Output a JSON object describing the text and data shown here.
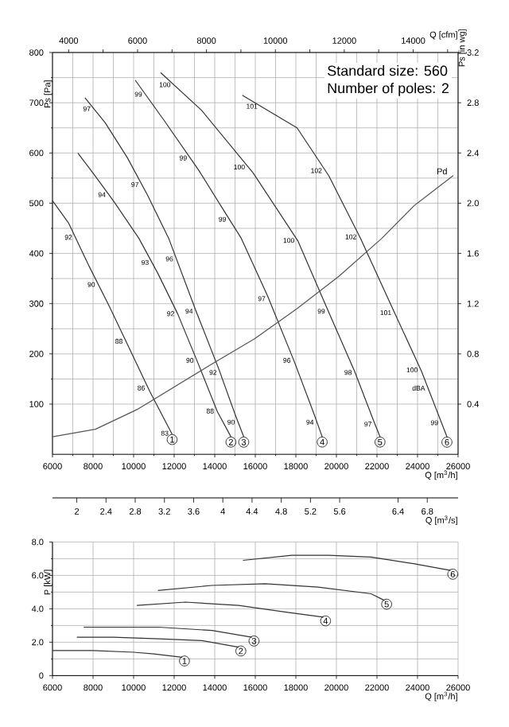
{
  "chart_data": [
    {
      "type": "line",
      "xlabel": "Q [m$^{3}$/h]",
      "ylabel": "Ps [Pa]",
      "y2label": "Ps [in wg]",
      "x2label": "Q [cfm]",
      "xlim": [
        6000,
        26000
      ],
      "xticks": [
        6000,
        8000,
        10000,
        12000,
        14000,
        16000,
        18000,
        20000,
        22000,
        24000,
        26000
      ],
      "ylim": [
        0,
        800
      ],
      "yticks": [
        100,
        200,
        300,
        400,
        500,
        600,
        700,
        800
      ],
      "y2lim": [
        0,
        3.2
      ],
      "y2ticks": [
        0.4,
        0.8,
        1.2,
        1.6,
        {
          "value": 2.0,
          "label": "2.0"
        },
        2.4,
        2.8,
        3.2
      ],
      "x2lim": [
        3531,
        15303
      ],
      "x2ticks": [
        4000,
        {
          "value": 5000,
          "label": null
        },
        6000,
        {
          "value": 7000,
          "label": null
        },
        8000,
        {
          "value": 9000,
          "label": null
        },
        10000,
        {
          "value": 11000,
          "label": null
        },
        12000,
        {
          "value": 13000,
          "label": null
        },
        14000,
        {
          "value": 15000,
          "label": null
        }
      ],
      "grid": true,
      "series": [
        {
          "name": "1",
          "color": "#333333",
          "x": [
            6000,
            6800,
            7800,
            8800,
            9800,
            10800,
            11900
          ],
          "values": [
            505,
            460,
            375,
            295,
            210,
            125,
            40
          ]
        },
        {
          "name": "2",
          "color": "#333333",
          "x": [
            7250,
            8000,
            9000,
            10260,
            11200,
            12170,
            13140,
            14130,
            14800
          ],
          "values": [
            600,
            560,
            505,
            430,
            360,
            280,
            185,
            85,
            35
          ]
        },
        {
          "name": "3",
          "color": "#333333",
          "x": [
            7600,
            8600,
            9700,
            10700,
            11730,
            13080,
            14200,
            15000,
            15430
          ],
          "values": [
            710,
            660,
            590,
            515,
            430,
            285,
            170,
            80,
            35
          ]
        },
        {
          "name": "4",
          "color": "#333333",
          "x": [
            10080,
            11500,
            13220,
            14300,
            15310,
            16610,
            17920,
            18900,
            19300
          ],
          "values": [
            745,
            665,
            565,
            495,
            430,
            315,
            185,
            80,
            35
          ]
        },
        {
          "name": "5",
          "color": "#333333",
          "x": [
            11330,
            13350,
            15900,
            18100,
            19600,
            20900,
            21900,
            22150
          ],
          "values": [
            760,
            685,
            560,
            425,
            285,
            165,
            60,
            35
          ]
        },
        {
          "name": "6",
          "color": "#333333",
          "x": [
            15360,
            18060,
            19620,
            21190,
            22890,
            24200,
            25450
          ],
          "values": [
            715,
            650,
            555,
            430,
            280,
            165,
            35
          ]
        },
        {
          "name": "Pd",
          "color": "#555555",
          "x": [
            6000,
            8120,
            10210,
            12040,
            13870,
            15960,
            18060,
            20140,
            22240,
            23830,
            25760
          ],
          "values": [
            35,
            50,
            90,
            135,
            180,
            230,
            290,
            355,
            430,
            495,
            555
          ]
        }
      ],
      "annotations": [
        "Standard size: 560",
        "Number of poles: 2",
        {
          "text": "92",
          "x": 7130,
          "y": 432
        },
        {
          "text": "90",
          "x": 8260,
          "y": 338
        },
        {
          "text": "88",
          "x": 9620,
          "y": 225
        },
        {
          "text": "86",
          "x": 10720,
          "y": 132
        },
        {
          "text": "83",
          "x": 11880,
          "y": 42
        },
        {
          "text": "94",
          "x": 8780,
          "y": 517
        },
        {
          "text": "93",
          "x": 10910,
          "y": 382
        },
        {
          "text": "92",
          "x": 12170,
          "y": 280
        },
        {
          "text": "90",
          "x": 13120,
          "y": 187
        },
        {
          "text": "88",
          "x": 14120,
          "y": 86
        },
        {
          "text": "97",
          "x": 8040,
          "y": 688
        },
        {
          "text": "97",
          "x": 10410,
          "y": 537
        },
        {
          "text": "96",
          "x": 12110,
          "y": 389
        },
        {
          "text": "94",
          "x": 13080,
          "y": 285
        },
        {
          "text": "92",
          "x": 14260,
          "y": 163
        },
        {
          "text": "90",
          "x": 15150,
          "y": 64
        },
        {
          "text": "99",
          "x": 10580,
          "y": 717
        },
        {
          "text": "99",
          "x": 12790,
          "y": 590
        },
        {
          "text": "99",
          "x": 14720,
          "y": 468
        },
        {
          "text": "97",
          "x": 16660,
          "y": 310
        },
        {
          "text": "96",
          "x": 17900,
          "y": 187
        },
        {
          "text": "94",
          "x": 19040,
          "y": 64
        },
        {
          "text": "100",
          "x": 11980,
          "y": 736
        },
        {
          "text": "100",
          "x": 15650,
          "y": 572
        },
        {
          "text": "100",
          "x": 18090,
          "y": 426
        },
        {
          "text": "99",
          "x": 19600,
          "y": 285
        },
        {
          "text": "98",
          "x": 20920,
          "y": 163
        },
        {
          "text": "97",
          "x": 21900,
          "y": 60
        },
        {
          "text": "101",
          "x": 16270,
          "y": 693
        },
        {
          "text": "102",
          "x": 19450,
          "y": 565
        },
        {
          "text": "102",
          "x": 21150,
          "y": 433
        },
        {
          "text": "101",
          "x": 22870,
          "y": 282
        },
        {
          "text": "100",
          "x": 24170,
          "y": 168
        },
        {
          "text": "99",
          "x": 25180,
          "y": 63
        },
        {
          "text": "dBA",
          "x": 24530,
          "y": 132
        }
      ]
    },
    {
      "type": "line",
      "xlabel": "Q [m$^{3}$/h]",
      "ylabel": "P [kW]",
      "x2label": "Q [m$^{3}$/s]",
      "x2lim": [
        1.667,
        7.222
      ],
      "x2ticks": [
        2,
        2.4,
        2.8,
        3.2,
        3.6,
        4,
        4.4,
        4.8,
        5.2,
        5.6,
        6.4,
        6.8
      ],
      "xlim": [
        6000,
        26000
      ],
      "xticks": [
        6000,
        8000,
        10000,
        12000,
        14000,
        16000,
        18000,
        20000,
        22000,
        24000,
        26000
      ],
      "ylim": [
        0,
        8
      ],
      "yticks": [
        0,
        {
          "value": 2,
          "label": "2.0"
        },
        {
          "value": 4,
          "label": "4.0"
        },
        {
          "value": 6,
          "label": "6.0"
        },
        {
          "value": 8,
          "label": "8.0"
        }
      ],
      "grid": true,
      "series": [
        {
          "name": "1",
          "color": "#333333",
          "x": [
            6000,
            8000,
            10000,
            11000,
            12400
          ],
          "values": [
            1.5,
            1.5,
            1.4,
            1.3,
            1.1
          ]
        },
        {
          "name": "2",
          "color": "#333333",
          "x": [
            7200,
            9000,
            11250,
            13350,
            15180
          ],
          "values": [
            2.3,
            2.3,
            2.2,
            2.1,
            1.7
          ]
        },
        {
          "name": "3",
          "color": "#333333",
          "x": [
            7540,
            9500,
            11250,
            13870,
            15830
          ],
          "values": [
            2.9,
            2.9,
            2.9,
            2.7,
            2.3
          ]
        },
        {
          "name": "4",
          "color": "#333333",
          "x": [
            10160,
            12560,
            15180,
            17530,
            19360
          ],
          "values": [
            4.2,
            4.4,
            4.2,
            3.8,
            3.5
          ]
        },
        {
          "name": "5",
          "color": "#333333",
          "x": [
            11200,
            13870,
            16490,
            19100,
            21710,
            22370
          ],
          "values": [
            5.1,
            5.4,
            5.5,
            5.3,
            4.9,
            4.5
          ]
        },
        {
          "name": "6",
          "color": "#333333",
          "x": [
            15390,
            17790,
            19620,
            21710,
            23800,
            25630
          ],
          "values": [
            6.9,
            7.2,
            7.2,
            7.1,
            6.7,
            6.3
          ]
        }
      ]
    }
  ]
}
